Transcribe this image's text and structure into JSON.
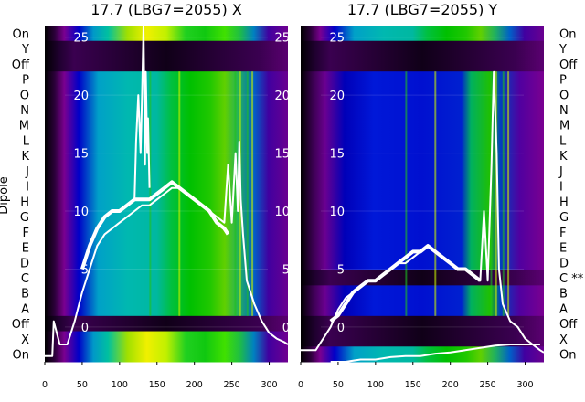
{
  "chart_data": [
    {
      "type": "heatmap",
      "title": "17.7 (LBG7=2055) X",
      "ylabel": "Dipole",
      "xlim": [
        0,
        325
      ],
      "xticks": [
        0,
        50,
        100,
        150,
        200,
        250,
        300
      ],
      "overlay_ylim": [
        -3,
        26
      ],
      "overlay_yticks": [
        0,
        5,
        10,
        15,
        20,
        25
      ],
      "row_labels": [
        "On",
        "Y",
        "Off",
        "P",
        "O",
        "N",
        "M",
        "L",
        "K",
        "J",
        "I",
        "H",
        "G",
        "F",
        "E",
        "D",
        "C",
        "B",
        "A",
        "Off",
        "X",
        "On"
      ],
      "series": [
        {
          "name": "",
          "x": [
            0,
            5,
            10,
            12,
            20,
            30,
            40,
            50,
            60,
            70,
            80,
            90,
            100,
            110,
            120,
            130,
            140,
            150,
            160,
            170,
            180,
            190,
            200,
            210,
            220,
            230,
            240,
            245,
            250,
            255,
            258,
            260,
            262,
            265,
            270,
            280,
            290,
            300,
            310,
            320,
            325
          ],
          "y": [
            -2.5,
            -2.5,
            -2.5,
            0.5,
            -1.5,
            -1.5,
            0.5,
            3,
            5,
            7,
            8,
            8.5,
            9,
            9.5,
            10,
            10.5,
            10.5,
            11,
            11.5,
            12,
            12,
            11.5,
            11,
            10.5,
            10,
            9.5,
            9,
            14,
            9,
            15,
            10,
            16,
            11,
            8,
            4,
            2,
            0.5,
            -0.5,
            -1,
            -1.3,
            -1.5
          ]
        },
        {
          "name": "",
          "x": [
            50,
            60,
            70,
            80,
            90,
            100,
            110,
            120,
            130,
            140,
            150,
            160,
            170,
            180,
            190,
            200,
            210,
            220,
            230,
            240,
            245
          ],
          "y": [
            5,
            7,
            8.5,
            9.5,
            10,
            10,
            10.5,
            11,
            11,
            11,
            11.5,
            12,
            12.5,
            12,
            11.5,
            11,
            10.5,
            10,
            9,
            8.5,
            8
          ]
        },
        {
          "name": "",
          "x": [
            120,
            122,
            125,
            128,
            130,
            132,
            133,
            134,
            135,
            137,
            138,
            140
          ],
          "y": [
            11,
            16,
            20,
            15,
            20,
            26,
            20,
            14,
            22,
            15,
            18,
            12
          ]
        }
      ]
    },
    {
      "type": "heatmap",
      "title": "17.7 (LBG7=2055) Y",
      "xlim": [
        0,
        325
      ],
      "xticks": [
        0,
        50,
        100,
        150,
        200,
        250,
        300
      ],
      "overlay_ylim": [
        -3,
        26
      ],
      "overlay_yticks": [
        0,
        5,
        10,
        15,
        20,
        25
      ],
      "row_labels": [
        "On",
        "Y",
        "Off",
        "P",
        "O",
        "N",
        "M",
        "L",
        "K",
        "J",
        "I",
        "H",
        "G",
        "F",
        "E",
        "D",
        "C **",
        "B",
        "A",
        "Off",
        "X",
        "On"
      ],
      "series": [
        {
          "name": "",
          "x": [
            0,
            10,
            20,
            30,
            40,
            50,
            60,
            70,
            80,
            90,
            100,
            110,
            120,
            130,
            140,
            150,
            160,
            170,
            180,
            190,
            200,
            210,
            220,
            230,
            240,
            245,
            250,
            255,
            258,
            262,
            265,
            270,
            280,
            290,
            300,
            310,
            320,
            325
          ],
          "y": [
            -2,
            -2,
            -2,
            -1,
            0,
            1.5,
            2.5,
            3,
            3.5,
            4,
            4,
            4.5,
            5,
            5.5,
            5.5,
            6,
            6.5,
            7,
            6.5,
            6,
            5.5,
            5,
            5,
            4.5,
            4,
            10,
            4,
            14,
            22,
            15,
            5,
            2,
            0.5,
            0,
            -1,
            -1.5,
            -2,
            -2.2
          ]
        },
        {
          "name": "",
          "x": [
            40,
            50,
            60,
            70,
            80,
            90,
            100,
            110,
            120,
            130,
            140,
            150,
            160,
            170,
            180,
            190,
            200,
            210,
            220,
            230,
            240
          ],
          "y": [
            0.5,
            1,
            2,
            3,
            3.5,
            4,
            4,
            4.5,
            5,
            5.5,
            6,
            6.5,
            6.5,
            7,
            6.5,
            6,
            5.5,
            5,
            5,
            4.5,
            4
          ]
        },
        {
          "name": "",
          "x": [
            40,
            60,
            80,
            100,
            120,
            140,
            160,
            180,
            200,
            220,
            240,
            260,
            280,
            300,
            320
          ],
          "y": [
            -3,
            -3,
            -2.8,
            -2.8,
            -2.6,
            -2.5,
            -2.5,
            -2.3,
            -2.2,
            -2,
            -1.8,
            -1.6,
            -1.5,
            -1.5,
            -1.5
          ]
        }
      ]
    }
  ]
}
